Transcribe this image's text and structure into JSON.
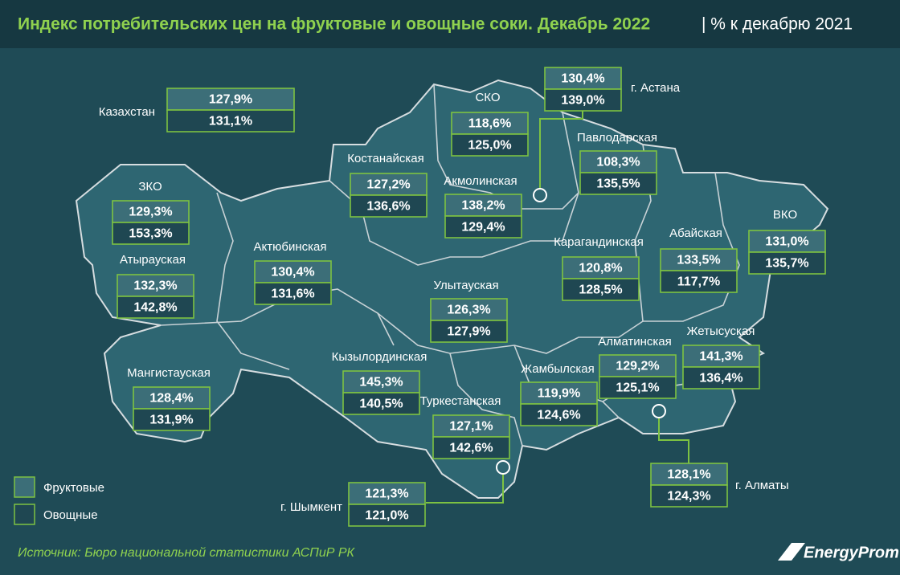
{
  "header": {
    "title": "Индекс потребительских цен на фруктовые и овощные соки. Декабрь 2022",
    "subtitle": "| % к декабрю 2021"
  },
  "regions": [
    {
      "name": "Казахстан",
      "fruit": "127,9%",
      "veg": "131,1%"
    },
    {
      "name": "СКО",
      "fruit": "118,6%",
      "veg": "125,0%"
    },
    {
      "name": "г. Астана",
      "fruit": "130,4%",
      "veg": "139,0%"
    },
    {
      "name": "Павлодарская",
      "fruit": "108,3%",
      "veg": "135,5%"
    },
    {
      "name": "Костанайская",
      "fruit": "127,2%",
      "veg": "136,6%"
    },
    {
      "name": "Акмолинская",
      "fruit": "138,2%",
      "veg": "129,4%"
    },
    {
      "name": "ЗКО",
      "fruit": "129,3%",
      "veg": "153,3%"
    },
    {
      "name": "Атырауская",
      "fruit": "132,3%",
      "veg": "142,8%"
    },
    {
      "name": "Актюбинская",
      "fruit": "130,4%",
      "veg": "131,6%"
    },
    {
      "name": "Карагандинская",
      "fruit": "120,8%",
      "veg": "128,5%"
    },
    {
      "name": "Абайская",
      "fruit": "133,5%",
      "veg": "117,7%"
    },
    {
      "name": "ВКО",
      "fruit": "131,0%",
      "veg": "135,7%"
    },
    {
      "name": "Улытауская",
      "fruit": "126,3%",
      "veg": "127,9%"
    },
    {
      "name": "Мангистауская",
      "fruit": "128,4%",
      "veg": "131,9%"
    },
    {
      "name": "Кызылординская",
      "fruit": "145,3%",
      "veg": "140,5%"
    },
    {
      "name": "Жамбылская",
      "fruit": "119,9%",
      "veg": "124,6%"
    },
    {
      "name": "Алматинская",
      "fruit": "129,2%",
      "veg": "125,1%"
    },
    {
      "name": "Жетысуская",
      "fruit": "141,3%",
      "veg": "136,4%"
    },
    {
      "name": "Туркестанская",
      "fruit": "127,1%",
      "veg": "142,6%"
    },
    {
      "name": "г. Шымкент",
      "fruit": "121,3%",
      "veg": "121,0%"
    },
    {
      "name": "г. Алматы",
      "fruit": "128,1%",
      "veg": "124,3%"
    }
  ],
  "legend": {
    "fruit": "Фруктовые",
    "veg": "Овощные"
  },
  "source": "Источник: Бюро национальной статистики АСПиР РК",
  "logo": "EnergyProm"
}
